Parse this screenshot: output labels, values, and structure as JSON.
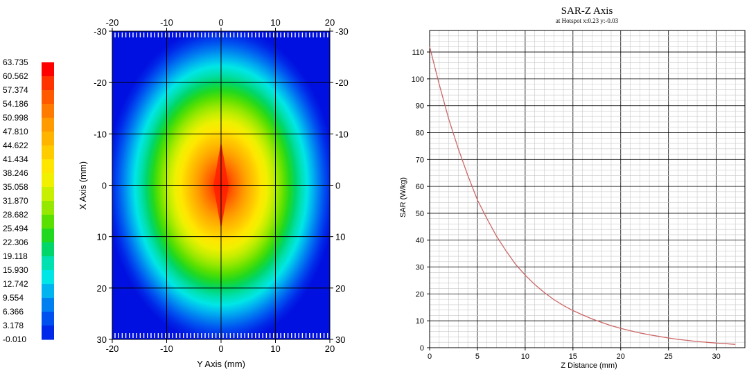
{
  "chart_data": [
    {
      "type": "heatmap",
      "xlabel": "Y Axis (mm)",
      "ylabel": "X Axis (mm)",
      "xlim": [
        -20,
        20
      ],
      "ylim": [
        -30,
        30
      ],
      "x_ticks": [
        "-20",
        "-10",
        "0",
        "10",
        "20"
      ],
      "y_ticks": [
        "-30",
        "-20",
        "-10",
        "0",
        "10",
        "20",
        "30"
      ],
      "y_axis_inverted": true,
      "grid": true,
      "peak": {
        "x": 0,
        "y": 0,
        "value": 63.735
      },
      "colorbar": {
        "labels": [
          "63.735",
          "60.562",
          "57.374",
          "54.186",
          "50.998",
          "47.810",
          "44.622",
          "41.434",
          "38.246",
          "35.058",
          "31.870",
          "28.682",
          "25.494",
          "22.306",
          "19.118",
          "15.930",
          "12.742",
          "9.554",
          "6.366",
          "3.178",
          "-0.010"
        ],
        "colors": [
          "#ff0000",
          "#ff3300",
          "#ff5a00",
          "#ff7a00",
          "#ff9a00",
          "#ffb400",
          "#ffcc00",
          "#ffe600",
          "#f0f000",
          "#c8ee00",
          "#96e800",
          "#5ae000",
          "#20d820",
          "#00d66a",
          "#00e0b0",
          "#00e6e6",
          "#00b4f0",
          "#0080f0",
          "#0050f0",
          "#0028e8",
          "#0010e0"
        ]
      }
    },
    {
      "type": "line",
      "title": "SAR-Z Axis",
      "subtitle": "at Hotspot x:0.23 y:-0.03",
      "xlabel": "Z Distance (mm)",
      "ylabel": "SAR (W/kg)",
      "xlim": [
        0,
        33
      ],
      "ylim": [
        0,
        118
      ],
      "x_ticks": [
        "0",
        "5",
        "10",
        "15",
        "20",
        "25",
        "30"
      ],
      "y_ticks": [
        "0",
        "10",
        "20",
        "30",
        "40",
        "50",
        "60",
        "70",
        "80",
        "90",
        "100",
        "110"
      ],
      "grid": true,
      "line_color": "#cc6666",
      "series": [
        {
          "x": [
            0,
            1,
            2,
            3,
            4,
            5,
            6,
            7,
            8,
            9,
            10,
            11,
            12,
            13,
            14,
            15,
            16,
            17,
            18,
            19,
            20,
            21,
            22,
            23,
            24,
            25,
            26,
            27,
            28,
            29,
            30,
            31,
            32
          ],
          "values": [
            112,
            98,
            85,
            74,
            64,
            55,
            48,
            41.5,
            36,
            31,
            27,
            23.5,
            20.5,
            17.9,
            15.7,
            13.8,
            12.2,
            10.7,
            9.4,
            8.2,
            7.2,
            6.3,
            5.5,
            4.8,
            4.2,
            3.6,
            3.1,
            2.7,
            2.3,
            2.0,
            1.7,
            1.5,
            1.2
          ]
        }
      ]
    }
  ]
}
